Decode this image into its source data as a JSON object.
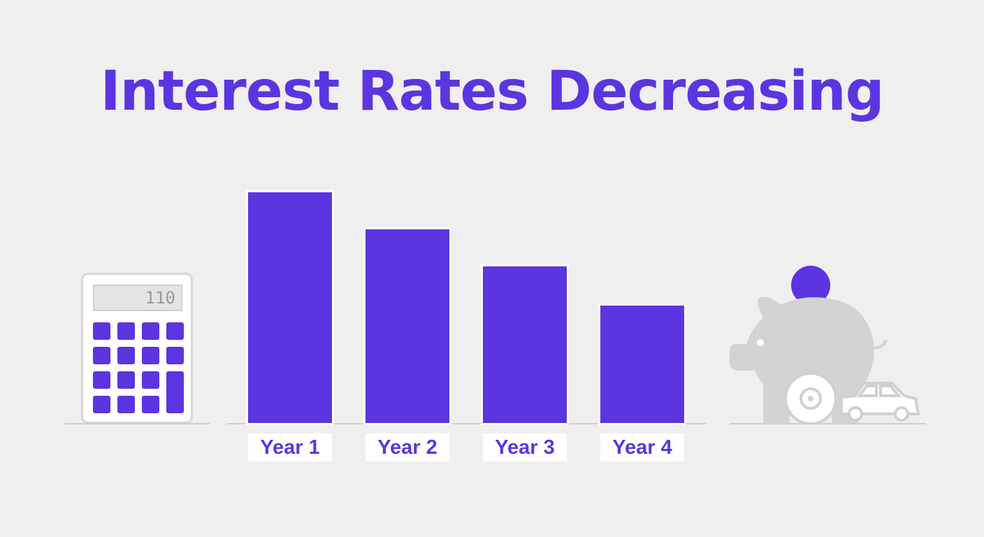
{
  "title": "Interest Rates Decreasing",
  "colors": {
    "accent": "#5c34e0",
    "background": "#efefef",
    "icon_gray": "#d0d0d0"
  },
  "icons": [
    "calculator-icon",
    "piggy-bank-icon",
    "coin-icon",
    "car-icon"
  ],
  "calculator": {
    "display": "110"
  },
  "chart_data": {
    "type": "bar",
    "title": "Interest Rates Decreasing",
    "categories": [
      "Year 1",
      "Year 2",
      "Year 3",
      "Year 4"
    ],
    "values": [
      100,
      84,
      68,
      51
    ],
    "xlabel": "",
    "ylabel": "",
    "ylim": [
      0,
      100
    ],
    "grid": false,
    "legend": "none"
  }
}
